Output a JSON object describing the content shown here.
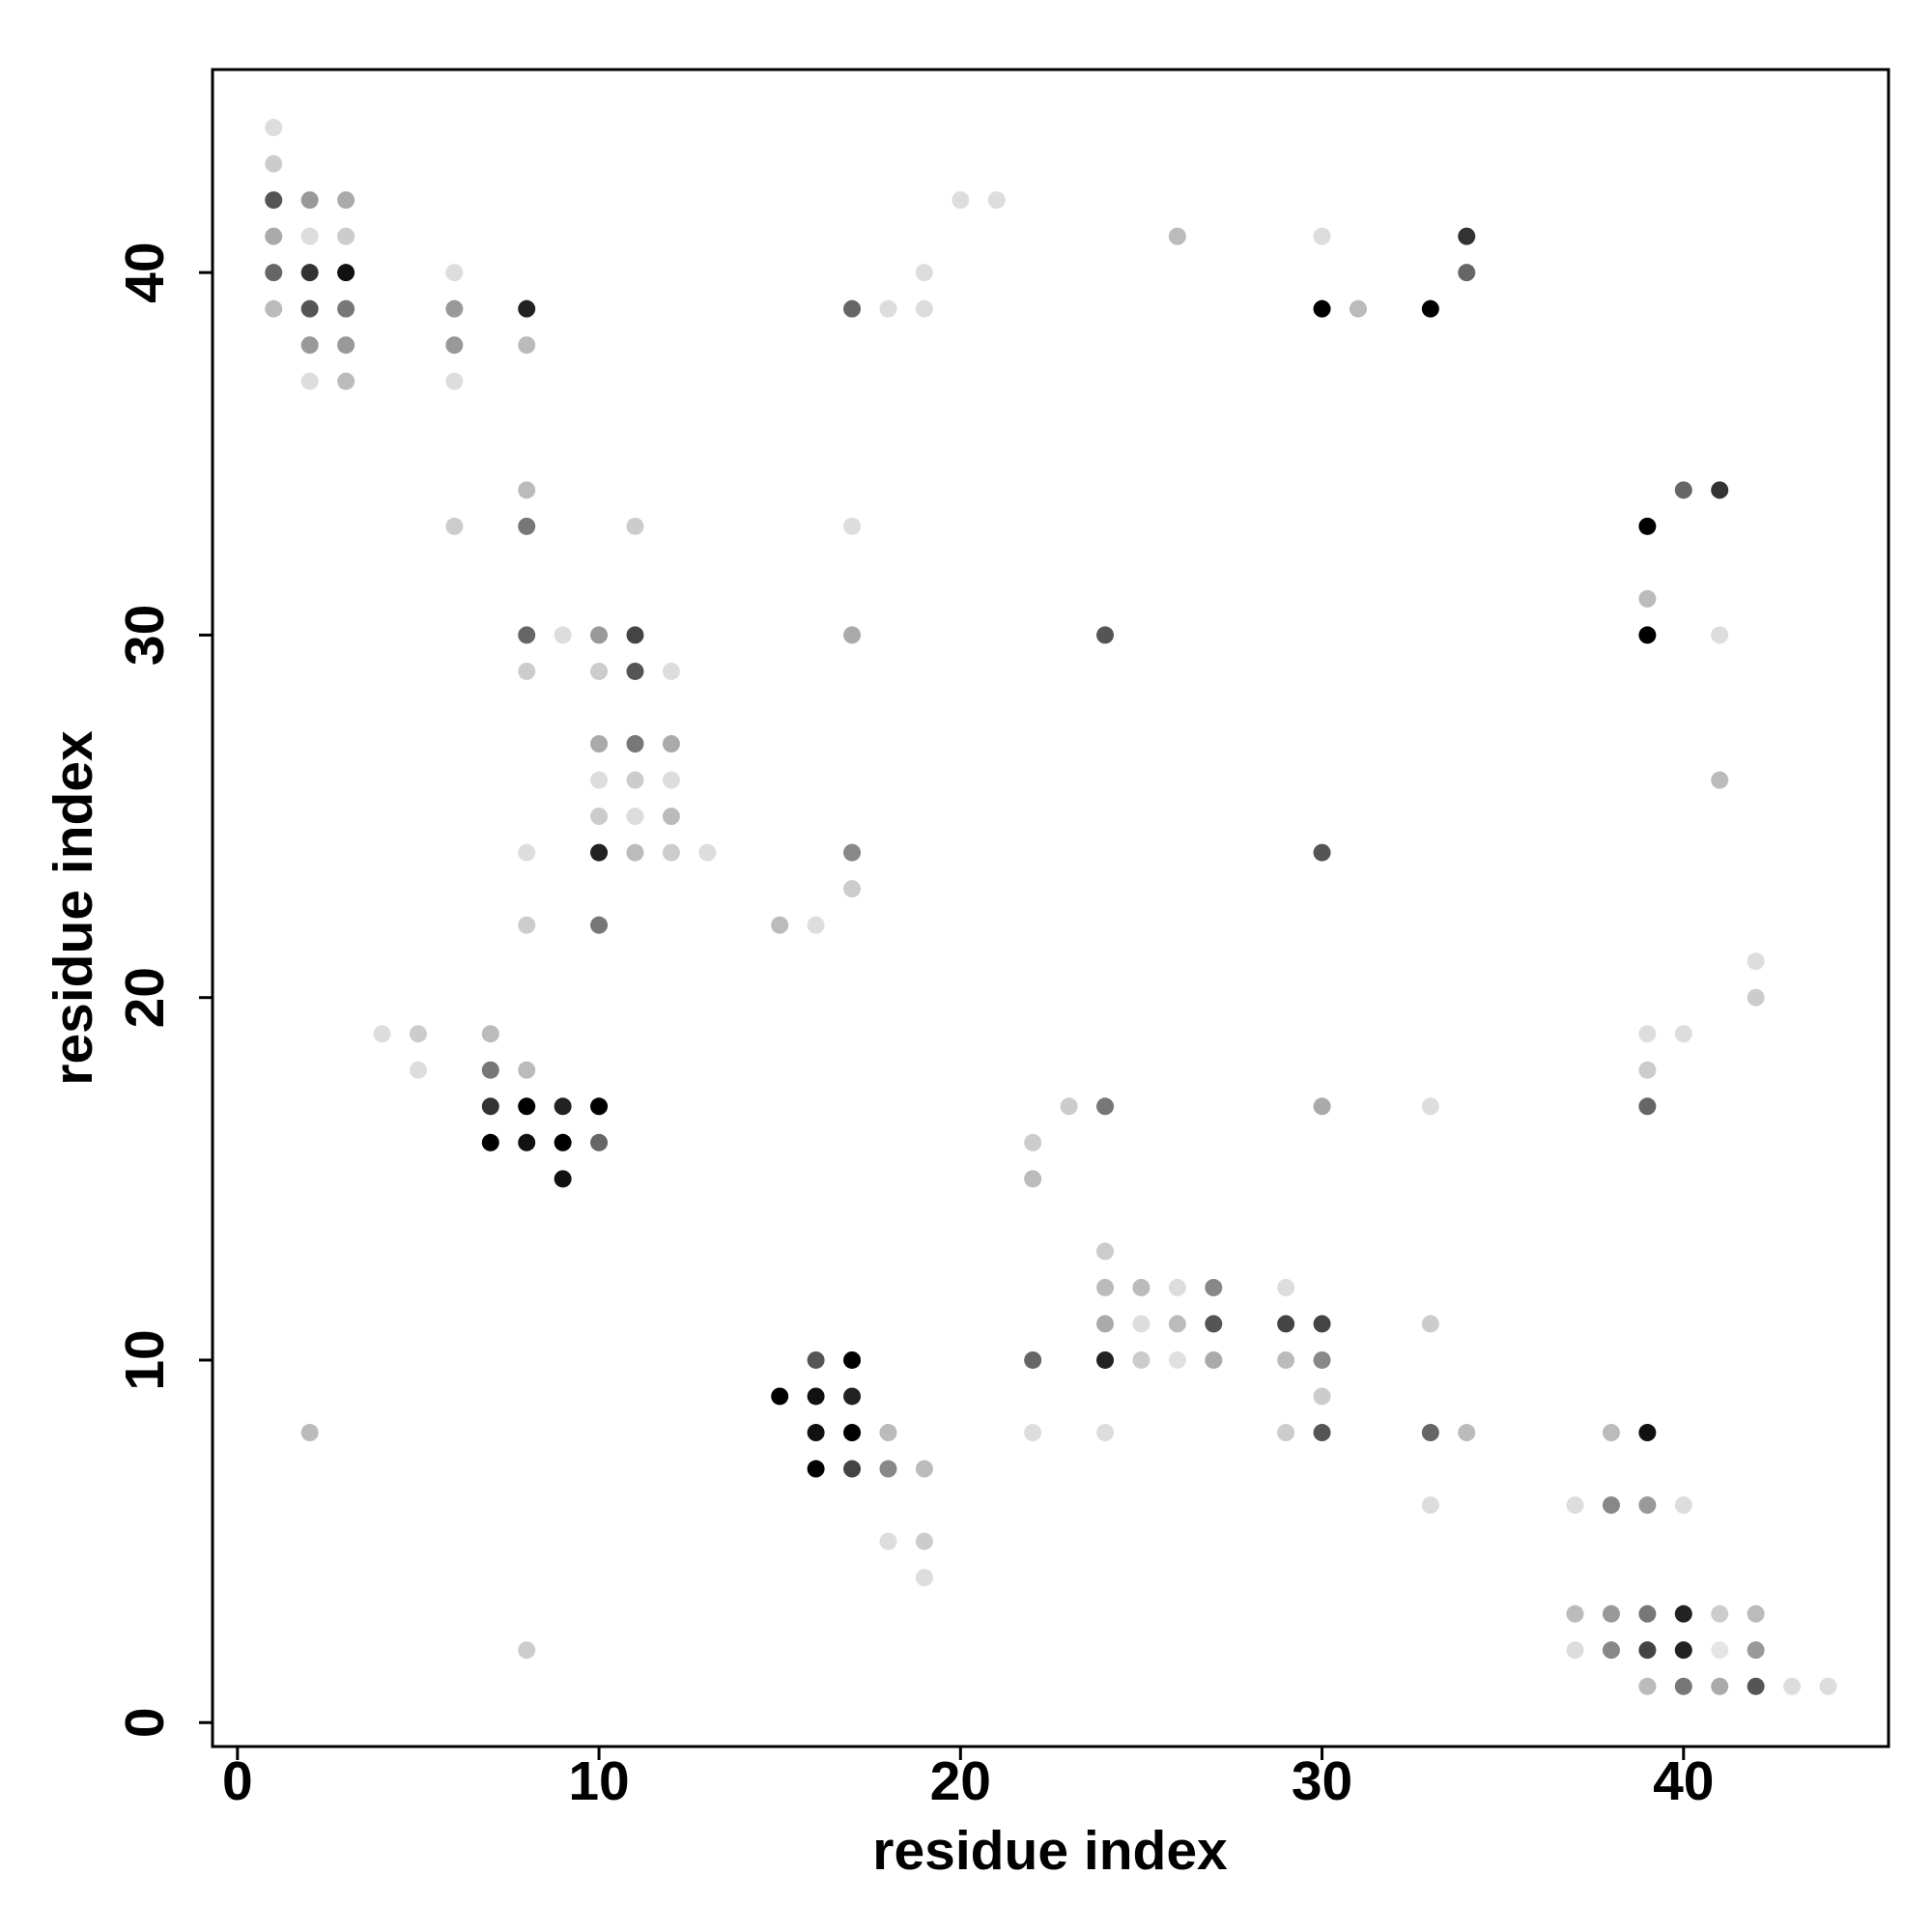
{
  "chart_data": {
    "type": "scatter",
    "xlabel": "residue index",
    "ylabel": "residue index",
    "xlim": [
      -0.69,
      45.67
    ],
    "ylim": [
      -0.66,
      45.6
    ],
    "xticks": [
      0,
      10,
      20,
      30,
      40
    ],
    "yticks": [
      0,
      10,
      20,
      30,
      40
    ],
    "x": [
      1,
      1,
      1,
      1,
      1,
      1,
      2,
      2,
      2,
      2,
      2,
      2,
      2,
      3,
      3,
      3,
      3,
      3,
      3,
      4,
      5,
      5,
      6,
      6,
      6,
      6,
      6,
      7,
      7,
      7,
      7,
      8,
      8,
      8,
      8,
      8,
      8,
      8,
      8,
      8,
      8,
      8,
      8,
      9,
      9,
      9,
      9,
      10,
      10,
      10,
      10,
      10,
      10,
      10,
      10,
      10,
      11,
      11,
      11,
      11,
      11,
      11,
      11,
      12,
      12,
      12,
      12,
      12,
      13,
      15,
      15,
      16,
      16,
      16,
      16,
      16,
      17,
      17,
      17,
      17,
      17,
      17,
      17,
      17,
      17,
      18,
      18,
      18,
      18,
      19,
      19,
      19,
      19,
      19,
      20,
      21,
      22,
      22,
      22,
      22,
      23,
      24,
      24,
      24,
      24,
      24,
      24,
      24,
      25,
      25,
      25,
      26,
      26,
      26,
      26,
      27,
      27,
      27,
      29,
      29,
      29,
      29,
      30,
      30,
      30,
      30,
      30,
      30,
      30,
      30,
      31,
      33,
      33,
      33,
      33,
      33,
      34,
      34,
      34,
      37,
      37,
      37,
      38,
      38,
      38,
      38,
      39,
      39,
      39,
      39,
      39,
      39,
      39,
      39,
      39,
      39,
      39,
      40,
      40,
      40,
      40,
      40,
      40,
      41,
      41,
      41,
      41,
      41,
      41,
      42,
      42,
      42,
      42,
      42,
      43,
      44
    ],
    "values": [
      44,
      43,
      42,
      41,
      40,
      39,
      42,
      41,
      40,
      39,
      38,
      37,
      8,
      42,
      41,
      40,
      39,
      38,
      37,
      19,
      19,
      18,
      40,
      39,
      38,
      37,
      33,
      19,
      18,
      17,
      16,
      39,
      38,
      34,
      33,
      30,
      29,
      24,
      22,
      18,
      17,
      16,
      2,
      30,
      17,
      16,
      15,
      30,
      29,
      27,
      26,
      25,
      24,
      22,
      17,
      16,
      33,
      30,
      29,
      27,
      26,
      25,
      24,
      29,
      27,
      26,
      25,
      24,
      24,
      22,
      9,
      22,
      10,
      9,
      8,
      7,
      39,
      33,
      30,
      24,
      23,
      10,
      9,
      8,
      7,
      39,
      8,
      7,
      5,
      40,
      39,
      7,
      5,
      4,
      42,
      42,
      16,
      15,
      10,
      8,
      17,
      30,
      17,
      13,
      12,
      11,
      10,
      8,
      12,
      11,
      10,
      41,
      12,
      11,
      10,
      12,
      11,
      10,
      12,
      11,
      10,
      8,
      41,
      39,
      24,
      17,
      11,
      10,
      9,
      8,
      39,
      39,
      17,
      11,
      8,
      6,
      41,
      40,
      8,
      6,
      3,
      2,
      8,
      6,
      3,
      2,
      33,
      31,
      30,
      19,
      18,
      17,
      8,
      6,
      3,
      2,
      1,
      34,
      19,
      6,
      3,
      2,
      1,
      34,
      30,
      26,
      3,
      2,
      1,
      21,
      20,
      3,
      2,
      1,
      1,
      1
    ],
    "colors": [
      "#dddddd",
      "#cccccc",
      "#555555",
      "#aaaaaa",
      "#666666",
      "#bbbbbb",
      "#999999",
      "#dddddd",
      "#333333",
      "#555555",
      "#999999",
      "#dddddd",
      "#bbbbbb",
      "#aaaaaa",
      "#cccccc",
      "#111111",
      "#777777",
      "#999999",
      "#bbbbbb",
      "#dddddd",
      "#cccccc",
      "#dddddd",
      "#dddddd",
      "#999999",
      "#999999",
      "#dddddd",
      "#cccccc",
      "#bbbbbb",
      "#777777",
      "#333333",
      "#000000",
      "#222222",
      "#bbbbbb",
      "#bbbbbb",
      "#777777",
      "#666666",
      "#cccccc",
      "#dddddd",
      "#cccccc",
      "#bbbbbb",
      "#000000",
      "#111111",
      "#cccccc",
      "#dddddd",
      "#222222",
      "#000000",
      "#111111",
      "#999999",
      "#cccccc",
      "#aaaaaa",
      "#dddddd",
      "#cccccc",
      "#222222",
      "#777777",
      "#000000",
      "#666666",
      "#cccccc",
      "#444444",
      "#555555",
      "#777777",
      "#cccccc",
      "#dddddd",
      "#bbbbbb",
      "#dddddd",
      "#aaaaaa",
      "#dddddd",
      "#bbbbbb",
      "#cccccc",
      "#dddddd",
      "#bbbbbb",
      "#000000",
      "#dddddd",
      "#555555",
      "#111111",
      "#111111",
      "#000000",
      "#666666",
      "#dddddd",
      "#aaaaaa",
      "#888888",
      "#cccccc",
      "#000000",
      "#222222",
      "#000000",
      "#444444",
      "#dddddd",
      "#bbbbbb",
      "#888888",
      "#dddddd",
      "#dddddd",
      "#dddddd",
      "#bbbbbb",
      "#cccccc",
      "#dddddd",
      "#dddddd",
      "#dddddd",
      "#cccccc",
      "#bbbbbb",
      "#666666",
      "#dddddd",
      "#cccccc",
      "#555555",
      "#777777",
      "#cccccc",
      "#bbbbbb",
      "#aaaaaa",
      "#222222",
      "#dddddd",
      "#bbbbbb",
      "#dddddd",
      "#cccccc",
      "#bbbbbb",
      "#dddddd",
      "#bbbbbb",
      "#e0e0e0",
      "#888888",
      "#555555",
      "#aaaaaa",
      "#dddddd",
      "#444444",
      "#bbbbbb",
      "#cccccc",
      "#dddddd",
      "#000000",
      "#555555",
      "#aaaaaa",
      "#444444",
      "#888888",
      "#cccccc",
      "#555555",
      "#bbbbbb",
      "#000000",
      "#dddddd",
      "#cccccc",
      "#666666",
      "#dddddd",
      "#333333",
      "#666666",
      "#bbbbbb",
      "#dddddd",
      "#bbbbbb",
      "#dddddd",
      "#bbbbbb",
      "#888888",
      "#999999",
      "#888888",
      "#000000",
      "#bbbbbb",
      "#000000",
      "#dddddd",
      "#cccccc",
      "#666666",
      "#111111",
      "#999999",
      "#777777",
      "#444444",
      "#bbbbbb",
      "#666666",
      "#dddddd",
      "#dddddd",
      "#222222",
      "#222222",
      "#777777",
      "#333333",
      "#dddddd",
      "#bbbbbb",
      "#cccccc",
      "#e5e5e5",
      "#aaaaaa",
      "#dddddd",
      "#cccccc",
      "#bbbbbb",
      "#999999",
      "#555555",
      "#dddddd",
      "#dddddd"
    ]
  }
}
